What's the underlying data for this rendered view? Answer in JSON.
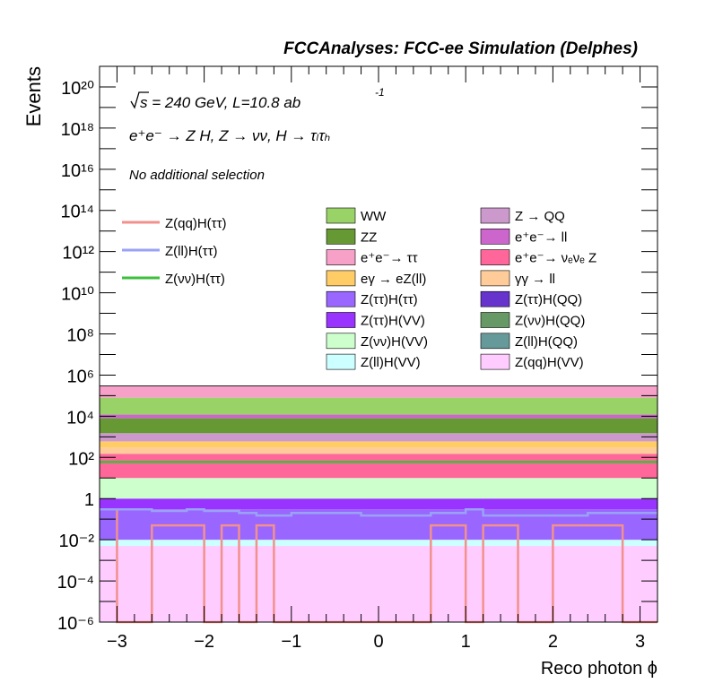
{
  "header": "FCCAnalyses: FCC-ee Simulation (Delphes)",
  "annotations": {
    "sqrt_s": "s = 240 GeV, L=10.8 ab",
    "lumi_exp": "-1",
    "process": "e⁺e⁻ → Z H, Z → νν, H → τₗτₕ",
    "selection": "No additional selection"
  },
  "chart_data": {
    "type": "histogram",
    "xlabel": "Reco photon ϕ",
    "ylabel": "Events",
    "xlim": [
      -3.2,
      3.2
    ],
    "ylim": [
      1e-06,
      1e+21
    ],
    "log_y": true,
    "x_ticks": [
      "−3",
      "−2",
      "−1",
      "0",
      "1",
      "2",
      "3"
    ],
    "y_ticks": [
      "10⁻⁶",
      "10⁻⁴",
      "10⁻²",
      "1",
      "10²",
      "10⁴",
      "10⁶",
      "10⁸",
      "10¹⁰",
      "10¹²",
      "10¹⁴",
      "10¹⁶",
      "10¹⁸",
      "10²⁰"
    ],
    "bin_edges": [
      -3.2,
      -3.0,
      -2.6,
      -2.2,
      -2.0,
      -1.8,
      -1.6,
      -1.4,
      -1.2,
      -1.0,
      -0.2,
      0.2,
      0.6,
      1.0,
      1.2,
      1.6,
      2.0,
      2.4,
      2.8,
      3.2
    ],
    "stack_levels_total": 300000.0,
    "stack_bands": [
      {
        "name": "Z(qq)H(VV)",
        "top": 0.005
      },
      {
        "name": "Z(ll)H(VV)",
        "top": 0.01
      },
      {
        "name": "Z(ττ)H(ττ)",
        "top": 0.3
      },
      {
        "name": "Z(ττ)H(VV)",
        "top": 1
      },
      {
        "name": "Z(νν)H(VV)",
        "top": 10
      },
      {
        "name": "e⁺e⁻→ νₑνₑ Z",
        "top": 150
      },
      {
        "name": "γγ → ll",
        "top": 300
      },
      {
        "name": "eγ → eZ(ll)",
        "top": 600
      },
      {
        "name": "Z → QQ",
        "top": 1500
      },
      {
        "name": "ZZ",
        "top": 8000
      },
      {
        "name": "e⁺e⁻→ ll",
        "top": 12000
      },
      {
        "name": "WW",
        "top": 80000
      },
      {
        "name": "e⁺e⁻→ ττ",
        "top": 300000
      }
    ],
    "series": [
      {
        "name": "Z(qq)H(ττ)",
        "type": "line",
        "values": [
          0.3,
          1e-06,
          0.05,
          0.05,
          1e-06,
          0.05,
          1e-06,
          0.05,
          1e-06,
          1e-06,
          1e-06,
          1e-06,
          0.05,
          1e-06,
          0.05,
          1e-06,
          0.05,
          0.05,
          1e-06
        ]
      },
      {
        "name": "Z(ll)H(ττ)",
        "type": "line",
        "values": [
          0.3,
          0.3,
          0.25,
          0.3,
          0.25,
          0.25,
          0.2,
          0.15,
          0.15,
          0.2,
          0.15,
          0.15,
          0.2,
          0.3,
          0.15,
          0.15,
          0.15,
          0.2,
          0.2
        ]
      },
      {
        "name": "Z(νν)H(ττ)",
        "type": "line",
        "values": [
          60,
          60,
          60,
          60,
          60,
          60,
          60,
          60,
          60,
          60,
          60,
          60,
          60,
          60,
          60,
          60,
          60,
          60,
          60
        ]
      }
    ],
    "legend": [
      {
        "name": "Z(qq)H(ττ)",
        "color": "#f2918c",
        "kind": "line"
      },
      {
        "name": "Z(ll)H(ττ)",
        "color": "#9aa2f5",
        "kind": "line"
      },
      {
        "name": "Z(νν)H(ττ)",
        "color": "#3cc03c",
        "kind": "line"
      },
      {
        "name": "WW",
        "color": "#99d266",
        "kind": "fill"
      },
      {
        "name": "ZZ",
        "color": "#669933",
        "kind": "fill"
      },
      {
        "name": "e⁺e⁻→ ττ",
        "color": "#f7a0c8",
        "kind": "fill"
      },
      {
        "name": "eγ → eZ(ll)",
        "color": "#ffcc66",
        "kind": "fill"
      },
      {
        "name": "Z(ττ)H(ττ)",
        "color": "#9966ff",
        "kind": "fill"
      },
      {
        "name": "Z(ττ)H(VV)",
        "color": "#9933ff",
        "kind": "fill"
      },
      {
        "name": "Z(νν)H(VV)",
        "color": "#ccffcc",
        "kind": "fill"
      },
      {
        "name": "Z(ll)H(VV)",
        "color": "#ccffff",
        "kind": "fill"
      },
      {
        "name": "Z → QQ",
        "color": "#cc99cc",
        "kind": "fill"
      },
      {
        "name": "e⁺e⁻→ ll",
        "color": "#cc66cc",
        "kind": "fill"
      },
      {
        "name": "e⁺e⁻→ νₑνₑ Z",
        "color": "#ff6699",
        "kind": "fill"
      },
      {
        "name": "γγ → ll",
        "color": "#ffcc99",
        "kind": "fill"
      },
      {
        "name": "Z(ττ)H(QQ)",
        "color": "#6633cc",
        "kind": "fill"
      },
      {
        "name": "Z(νν)H(QQ)",
        "color": "#669966",
        "kind": "fill"
      },
      {
        "name": "Z(ll)H(QQ)",
        "color": "#669999",
        "kind": "fill"
      },
      {
        "name": "Z(qq)H(VV)",
        "color": "#ffccff",
        "kind": "fill"
      }
    ]
  }
}
